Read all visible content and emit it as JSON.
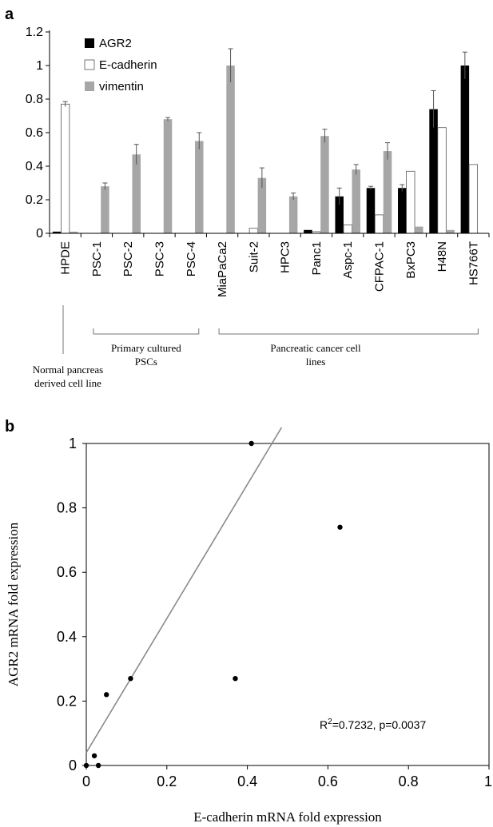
{
  "panel_a": {
    "letter": "a"
  },
  "panel_b": {
    "letter": "b"
  },
  "chart_data": [
    {
      "type": "bar",
      "categories": [
        "HPDE",
        "PSC-1",
        "PSC-2",
        "PSC-3",
        "PSC-4",
        "MiaPaCa2",
        "Suit-2",
        "HPC3",
        "Panc1",
        "Aspc-1",
        "CFPAC-1",
        "BxPC3",
        "H48N",
        "HS766T"
      ],
      "series": [
        {
          "name": "AGR2",
          "color": "#000000",
          "values": [
            0.01,
            0,
            0,
            0,
            0,
            0,
            0,
            0,
            0.02,
            0.22,
            0.27,
            0.27,
            0.74,
            1.0
          ],
          "errors": [
            0,
            0,
            0,
            0,
            0,
            0,
            0,
            0,
            0,
            0.05,
            0.01,
            0.02,
            0.11,
            0.08
          ]
        },
        {
          "name": "E-cadherin",
          "color": "#ffffff",
          "values": [
            0.77,
            0,
            0,
            0,
            0,
            0,
            0.03,
            0,
            0.01,
            0.05,
            0.11,
            0.37,
            0.63,
            0.41
          ],
          "errors": [
            0.015,
            0,
            0,
            0,
            0,
            0,
            0,
            0,
            0,
            0,
            0,
            0,
            0,
            0
          ]
        },
        {
          "name": "vimentin",
          "color": "#a6a6a6",
          "values": [
            0.01,
            0.28,
            0.47,
            0.68,
            0.55,
            1.0,
            0.33,
            0.22,
            0.58,
            0.38,
            0.49,
            0.04,
            0.02,
            0
          ],
          "errors": [
            0,
            0.02,
            0.06,
            0.01,
            0.05,
            0.1,
            0.06,
            0.02,
            0.04,
            0.03,
            0.05,
            0,
            0,
            0
          ]
        }
      ],
      "ylim": [
        0,
        1.2
      ],
      "yticks": [
        "0",
        "0.2",
        "0.4",
        "0.6",
        "0.8",
        "1",
        "1.2"
      ],
      "legend_position": "top-left",
      "groups": [
        {
          "label_lines": [
            "Normal pancreas",
            "derived cell line"
          ]
        },
        {
          "label_lines": [
            "Primary cultured",
            "PSCs"
          ]
        },
        {
          "label_lines": [
            "Pancreatic cancer cell",
            "lines"
          ]
        }
      ]
    },
    {
      "type": "scatter",
      "points": [
        {
          "x": 0,
          "y": 0
        },
        {
          "x": 0.02,
          "y": 0.03
        },
        {
          "x": 0.03,
          "y": 0
        },
        {
          "x": 0.05,
          "y": 0.22
        },
        {
          "x": 0.11,
          "y": 0.27
        },
        {
          "x": 0.37,
          "y": 0.27
        },
        {
          "x": 0.41,
          "y": 1.0
        },
        {
          "x": 0.63,
          "y": 0.74
        }
      ],
      "trendline": {
        "x": [
          0,
          0.485
        ],
        "y": [
          0.04,
          1.05
        ]
      },
      "xlim": [
        0,
        1
      ],
      "ylim": [
        0,
        1
      ],
      "xticks": [
        "0",
        "0.2",
        "0.4",
        "0.6",
        "0.8",
        "1"
      ],
      "yticks": [
        "0",
        "0.2",
        "0.4",
        "0.6",
        "0.8",
        "1"
      ],
      "xlabel": "E-cadherin mRNA fold expression",
      "ylabel": "AGR2 mRNA fold expression",
      "annotation_r2": "R",
      "annotation_sup": "2",
      "annotation_rest": "=0.7232, p=0.0037"
    }
  ]
}
